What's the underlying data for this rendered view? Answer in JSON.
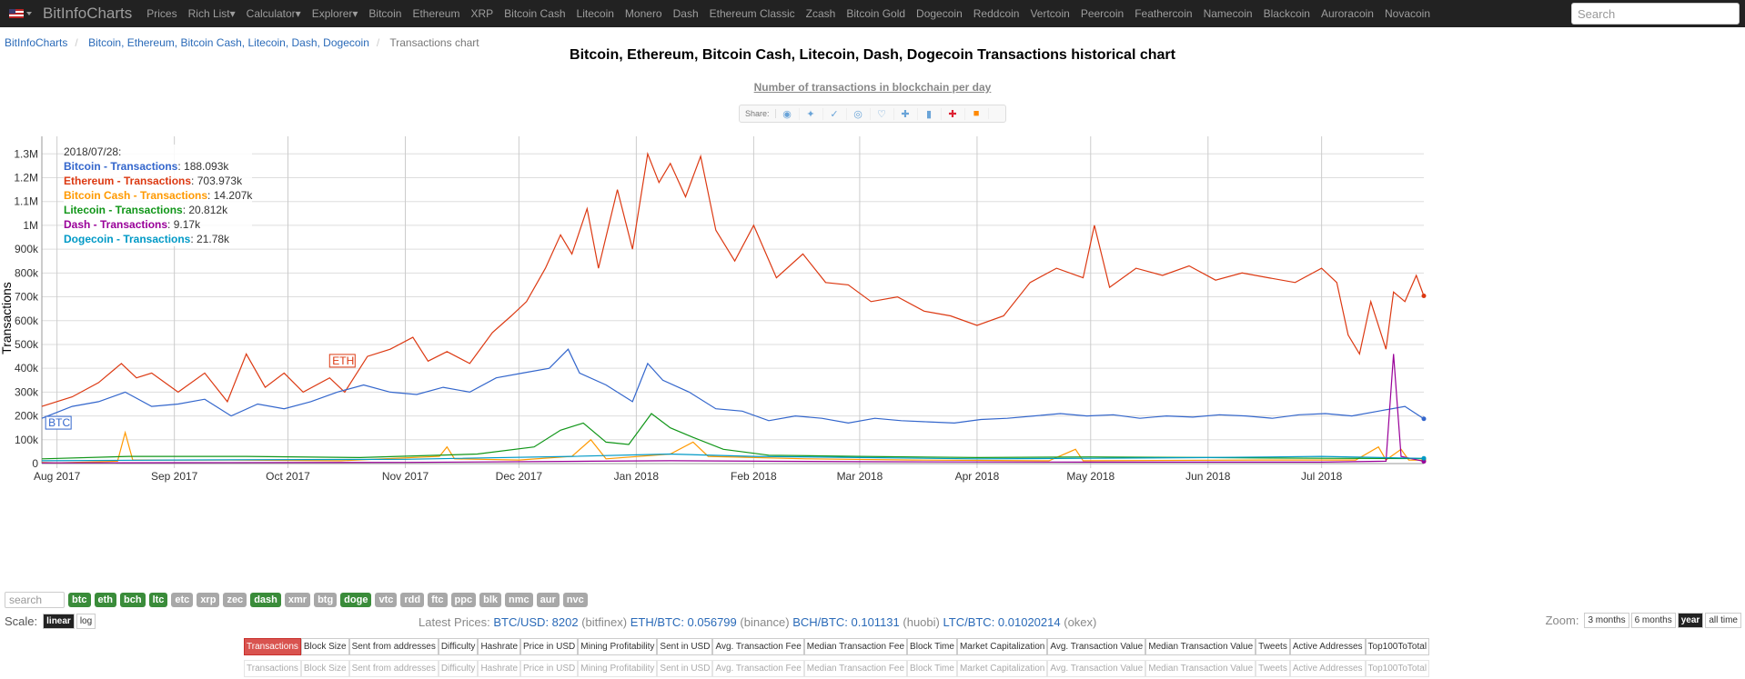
{
  "nav": {
    "brand": "BitInfoCharts",
    "links": [
      "Prices",
      "Rich List▾",
      "Calculator▾",
      "Explorer▾",
      "Bitcoin",
      "Ethereum",
      "XRP",
      "Bitcoin Cash",
      "Litecoin",
      "Monero",
      "Dash",
      "Ethereum Classic",
      "Zcash",
      "Bitcoin Gold",
      "Dogecoin",
      "Reddcoin",
      "Vertcoin",
      "Peercoin",
      "Feathercoin",
      "Namecoin",
      "Blackcoin",
      "Auroracoin",
      "Novacoin"
    ],
    "search_placeholder": "Search"
  },
  "breadcrumb": {
    "home": "BitInfoCharts",
    "coins": "Bitcoin, Ethereum, Bitcoin Cash, Litecoin, Dash, Dogecoin",
    "current": "Transactions chart"
  },
  "share": {
    "label": "Share:"
  },
  "tooltip": {
    "date": "2018/07/28:",
    "rows": [
      {
        "name": "Bitcoin - Transactions",
        "value": "188.093k",
        "color": "#3366cc"
      },
      {
        "name": "Ethereum - Transactions",
        "value": "703.973k",
        "color": "#dc3912"
      },
      {
        "name": "Bitcoin Cash - Transactions",
        "value": "14.207k",
        "color": "#ff9900"
      },
      {
        "name": "Litecoin - Transactions",
        "value": "20.812k",
        "color": "#109618"
      },
      {
        "name": "Dash - Transactions",
        "value": "9.17k",
        "color": "#990099"
      },
      {
        "name": "Dogecoin - Transactions",
        "value": "21.78k",
        "color": "#0099c6"
      }
    ]
  },
  "chart_data": {
    "type": "line",
    "title": "Bitcoin, Ethereum, Bitcoin Cash, Litecoin, Dash, Dogecoin Transactions historical chart",
    "subtitle": "Number of transactions in blockchain per day",
    "ylabel": "Transactions",
    "ylim": [
      0,
      1450000
    ],
    "yticks": [
      0,
      100000,
      200000,
      300000,
      400000,
      500000,
      600000,
      700000,
      800000,
      900000,
      1000000,
      1100000,
      1200000,
      1300000,
      1400000
    ],
    "yticklabels": [
      "0",
      "100k",
      "200k",
      "300k",
      "400k",
      "500k",
      "600k",
      "700k",
      "800k",
      "900k",
      "1M",
      "1.1M",
      "1.2M",
      "1.3M",
      "1.4M"
    ],
    "xlim": [
      "2017-07-28",
      "2018-07-28"
    ],
    "xticks": [
      "2017-08-01",
      "2017-09-01",
      "2017-10-01",
      "2017-11-01",
      "2017-12-01",
      "2018-01-01",
      "2018-02-01",
      "2018-03-01",
      "2018-04-01",
      "2018-05-01",
      "2018-06-01",
      "2018-07-01"
    ],
    "xticklabels": [
      "Aug 2017",
      "Sep 2017",
      "Oct 2017",
      "Nov 2017",
      "Dec 2017",
      "Jan 2018",
      "Feb 2018",
      "Mar 2018",
      "Apr 2018",
      "May 2018",
      "Jun 2018",
      "Jul 2018"
    ],
    "grid": true,
    "annotations": [
      {
        "text": "BTC",
        "x": "2017-07-29",
        "y": 160000,
        "color": "#3366cc"
      },
      {
        "text": "ETH",
        "x": "2017-10-12",
        "y": 420000,
        "color": "#dc3912"
      }
    ],
    "series": [
      {
        "name": "Ethereum - Transactions",
        "color": "#dc3912",
        "points": [
          [
            "2017-07-28",
            240000
          ],
          [
            "2017-08-05",
            280000
          ],
          [
            "2017-08-12",
            340000
          ],
          [
            "2017-08-18",
            420000
          ],
          [
            "2017-08-22",
            360000
          ],
          [
            "2017-08-26",
            380000
          ],
          [
            "2017-09-02",
            300000
          ],
          [
            "2017-09-09",
            380000
          ],
          [
            "2017-09-15",
            260000
          ],
          [
            "2017-09-20",
            460000
          ],
          [
            "2017-09-25",
            320000
          ],
          [
            "2017-09-30",
            380000
          ],
          [
            "2017-10-05",
            300000
          ],
          [
            "2017-10-12",
            360000
          ],
          [
            "2017-10-16",
            300000
          ],
          [
            "2017-10-22",
            450000
          ],
          [
            "2017-10-28",
            480000
          ],
          [
            "2017-11-03",
            530000
          ],
          [
            "2017-11-07",
            430000
          ],
          [
            "2017-11-12",
            470000
          ],
          [
            "2017-11-18",
            420000
          ],
          [
            "2017-11-24",
            550000
          ],
          [
            "2017-11-29",
            620000
          ],
          [
            "2017-12-03",
            680000
          ],
          [
            "2017-12-08",
            820000
          ],
          [
            "2017-12-12",
            960000
          ],
          [
            "2017-12-15",
            880000
          ],
          [
            "2017-12-19",
            1070000
          ],
          [
            "2017-12-22",
            820000
          ],
          [
            "2017-12-27",
            1150000
          ],
          [
            "2017-12-31",
            900000
          ],
          [
            "2018-01-04",
            1300000
          ],
          [
            "2018-01-07",
            1180000
          ],
          [
            "2018-01-10",
            1260000
          ],
          [
            "2018-01-14",
            1120000
          ],
          [
            "2018-01-18",
            1290000
          ],
          [
            "2018-01-22",
            980000
          ],
          [
            "2018-01-27",
            850000
          ],
          [
            "2018-02-01",
            1000000
          ],
          [
            "2018-02-07",
            780000
          ],
          [
            "2018-02-14",
            880000
          ],
          [
            "2018-02-20",
            760000
          ],
          [
            "2018-02-26",
            750000
          ],
          [
            "2018-03-04",
            680000
          ],
          [
            "2018-03-11",
            700000
          ],
          [
            "2018-03-18",
            640000
          ],
          [
            "2018-03-25",
            620000
          ],
          [
            "2018-04-01",
            580000
          ],
          [
            "2018-04-08",
            620000
          ],
          [
            "2018-04-15",
            760000
          ],
          [
            "2018-04-22",
            820000
          ],
          [
            "2018-04-29",
            780000
          ],
          [
            "2018-05-02",
            1000000
          ],
          [
            "2018-05-06",
            740000
          ],
          [
            "2018-05-13",
            820000
          ],
          [
            "2018-05-20",
            790000
          ],
          [
            "2018-05-27",
            830000
          ],
          [
            "2018-06-03",
            770000
          ],
          [
            "2018-06-10",
            800000
          ],
          [
            "2018-06-17",
            780000
          ],
          [
            "2018-06-24",
            760000
          ],
          [
            "2018-07-01",
            820000
          ],
          [
            "2018-07-05",
            760000
          ],
          [
            "2018-07-08",
            540000
          ],
          [
            "2018-07-11",
            460000
          ],
          [
            "2018-07-14",
            680000
          ],
          [
            "2018-07-18",
            480000
          ],
          [
            "2018-07-20",
            720000
          ],
          [
            "2018-07-23",
            680000
          ],
          [
            "2018-07-26",
            790000
          ],
          [
            "2018-07-28",
            703973
          ]
        ]
      },
      {
        "name": "Bitcoin - Transactions",
        "color": "#3366cc",
        "points": [
          [
            "2017-07-28",
            190000
          ],
          [
            "2017-08-05",
            240000
          ],
          [
            "2017-08-12",
            260000
          ],
          [
            "2017-08-19",
            300000
          ],
          [
            "2017-08-26",
            240000
          ],
          [
            "2017-09-02",
            250000
          ],
          [
            "2017-09-09",
            270000
          ],
          [
            "2017-09-16",
            200000
          ],
          [
            "2017-09-23",
            250000
          ],
          [
            "2017-09-30",
            230000
          ],
          [
            "2017-10-07",
            260000
          ],
          [
            "2017-10-14",
            300000
          ],
          [
            "2017-10-21",
            330000
          ],
          [
            "2017-10-28",
            300000
          ],
          [
            "2017-11-04",
            290000
          ],
          [
            "2017-11-11",
            320000
          ],
          [
            "2017-11-18",
            300000
          ],
          [
            "2017-11-25",
            360000
          ],
          [
            "2017-12-02",
            380000
          ],
          [
            "2017-12-09",
            400000
          ],
          [
            "2017-12-14",
            480000
          ],
          [
            "2017-12-17",
            380000
          ],
          [
            "2017-12-24",
            330000
          ],
          [
            "2017-12-31",
            260000
          ],
          [
            "2018-01-04",
            420000
          ],
          [
            "2018-01-08",
            350000
          ],
          [
            "2018-01-15",
            300000
          ],
          [
            "2018-01-22",
            230000
          ],
          [
            "2018-01-29",
            220000
          ],
          [
            "2018-02-05",
            180000
          ],
          [
            "2018-02-12",
            200000
          ],
          [
            "2018-02-19",
            190000
          ],
          [
            "2018-02-26",
            170000
          ],
          [
            "2018-03-05",
            190000
          ],
          [
            "2018-03-12",
            180000
          ],
          [
            "2018-03-19",
            175000
          ],
          [
            "2018-03-26",
            170000
          ],
          [
            "2018-04-02",
            185000
          ],
          [
            "2018-04-09",
            190000
          ],
          [
            "2018-04-16",
            200000
          ],
          [
            "2018-04-23",
            210000
          ],
          [
            "2018-04-30",
            200000
          ],
          [
            "2018-05-07",
            205000
          ],
          [
            "2018-05-14",
            190000
          ],
          [
            "2018-05-21",
            200000
          ],
          [
            "2018-05-28",
            195000
          ],
          [
            "2018-06-04",
            205000
          ],
          [
            "2018-06-11",
            200000
          ],
          [
            "2018-06-18",
            190000
          ],
          [
            "2018-06-25",
            205000
          ],
          [
            "2018-07-02",
            210000
          ],
          [
            "2018-07-09",
            200000
          ],
          [
            "2018-07-16",
            220000
          ],
          [
            "2018-07-23",
            240000
          ],
          [
            "2018-07-28",
            188093
          ]
        ]
      },
      {
        "name": "Bitcoin Cash - Transactions",
        "color": "#ff9900",
        "points": [
          [
            "2017-07-28",
            5000
          ],
          [
            "2017-08-01",
            3000
          ],
          [
            "2017-08-17",
            10000
          ],
          [
            "2017-08-19",
            130000
          ],
          [
            "2017-08-21",
            15000
          ],
          [
            "2017-09-15",
            15000
          ],
          [
            "2017-10-15",
            12000
          ],
          [
            "2017-11-10",
            30000
          ],
          [
            "2017-11-12",
            70000
          ],
          [
            "2017-11-14",
            20000
          ],
          [
            "2017-12-01",
            15000
          ],
          [
            "2017-12-15",
            30000
          ],
          [
            "2017-12-20",
            100000
          ],
          [
            "2017-12-24",
            20000
          ],
          [
            "2018-01-10",
            40000
          ],
          [
            "2018-01-16",
            90000
          ],
          [
            "2018-01-20",
            30000
          ],
          [
            "2018-02-15",
            20000
          ],
          [
            "2018-03-15",
            15000
          ],
          [
            "2018-04-20",
            12000
          ],
          [
            "2018-04-27",
            60000
          ],
          [
            "2018-04-29",
            12000
          ],
          [
            "2018-06-15",
            15000
          ],
          [
            "2018-07-10",
            15000
          ],
          [
            "2018-07-16",
            70000
          ],
          [
            "2018-07-18",
            15000
          ],
          [
            "2018-07-22",
            60000
          ],
          [
            "2018-07-24",
            15000
          ],
          [
            "2018-07-28",
            14207
          ]
        ]
      },
      {
        "name": "Litecoin - Transactions",
        "color": "#109618",
        "points": [
          [
            "2017-07-28",
            20000
          ],
          [
            "2017-08-20",
            30000
          ],
          [
            "2017-09-20",
            30000
          ],
          [
            "2017-10-20",
            25000
          ],
          [
            "2017-11-20",
            40000
          ],
          [
            "2017-12-05",
            70000
          ],
          [
            "2017-12-12",
            140000
          ],
          [
            "2017-12-18",
            170000
          ],
          [
            "2017-12-24",
            90000
          ],
          [
            "2017-12-30",
            80000
          ],
          [
            "2018-01-05",
            210000
          ],
          [
            "2018-01-10",
            150000
          ],
          [
            "2018-01-16",
            110000
          ],
          [
            "2018-01-24",
            60000
          ],
          [
            "2018-02-05",
            35000
          ],
          [
            "2018-03-01",
            30000
          ],
          [
            "2018-04-01",
            25000
          ],
          [
            "2018-05-01",
            28000
          ],
          [
            "2018-06-01",
            25000
          ],
          [
            "2018-07-01",
            22000
          ],
          [
            "2018-07-28",
            20812
          ]
        ]
      },
      {
        "name": "Dash - Transactions",
        "color": "#990099",
        "points": [
          [
            "2017-07-28",
            3000
          ],
          [
            "2017-09-01",
            4000
          ],
          [
            "2017-11-01",
            5000
          ],
          [
            "2017-12-20",
            10000
          ],
          [
            "2018-01-10",
            12000
          ],
          [
            "2018-03-01",
            8000
          ],
          [
            "2018-05-01",
            6000
          ],
          [
            "2018-07-01",
            6000
          ],
          [
            "2018-07-18",
            10000
          ],
          [
            "2018-07-20",
            460000
          ],
          [
            "2018-07-22",
            30000
          ],
          [
            "2018-07-28",
            9170
          ]
        ]
      },
      {
        "name": "Dogecoin - Transactions",
        "color": "#0099c6",
        "points": [
          [
            "2017-07-28",
            12000
          ],
          [
            "2017-09-01",
            15000
          ],
          [
            "2017-11-01",
            18000
          ],
          [
            "2017-12-15",
            30000
          ],
          [
            "2018-01-10",
            40000
          ],
          [
            "2018-02-01",
            30000
          ],
          [
            "2018-03-01",
            25000
          ],
          [
            "2018-04-01",
            20000
          ],
          [
            "2018-05-01",
            22000
          ],
          [
            "2018-06-01",
            25000
          ],
          [
            "2018-07-01",
            30000
          ],
          [
            "2018-07-28",
            21780
          ]
        ]
      }
    ]
  },
  "coins": {
    "search_placeholder": "search",
    "items": [
      {
        "label": "btc",
        "on": true
      },
      {
        "label": "eth",
        "on": true
      },
      {
        "label": "bch",
        "on": true
      },
      {
        "label": "ltc",
        "on": true
      },
      {
        "label": "etc",
        "on": false
      },
      {
        "label": "xrp",
        "on": false
      },
      {
        "label": "zec",
        "on": false
      },
      {
        "label": "dash",
        "on": true
      },
      {
        "label": "xmr",
        "on": false
      },
      {
        "label": "btg",
        "on": false
      },
      {
        "label": "doge",
        "on": true
      },
      {
        "label": "vtc",
        "on": false
      },
      {
        "label": "rdd",
        "on": false
      },
      {
        "label": "ftc",
        "on": false
      },
      {
        "label": "ppc",
        "on": false
      },
      {
        "label": "blk",
        "on": false
      },
      {
        "label": "nmc",
        "on": false
      },
      {
        "label": "aur",
        "on": false
      },
      {
        "label": "nvc",
        "on": false
      }
    ]
  },
  "scale": {
    "label": "Scale:",
    "linear": "linear",
    "log": "log"
  },
  "prices": {
    "label": "Latest Prices:",
    "items": [
      {
        "pair": "BTC/USD: 8202",
        "src": "(bitfinex)"
      },
      {
        "pair": "ETH/BTC: 0.056799",
        "src": "(binance)"
      },
      {
        "pair": "BCH/BTC: 0.101131",
        "src": "(huobi)"
      },
      {
        "pair": "LTC/BTC: 0.01020214",
        "src": "(okex)"
      }
    ]
  },
  "zoom": {
    "label": "Zoom:",
    "options": [
      "3 months",
      "6 months",
      "year",
      "all time"
    ],
    "selected": "year"
  },
  "metrics": [
    "Transactions",
    "Block Size",
    "Sent from addresses",
    "Difficulty",
    "Hashrate",
    "Price in USD",
    "Mining Profitability",
    "Sent in USD",
    "Avg. Transaction Fee",
    "Median Transaction Fee",
    "Block Time",
    "Market Capitalization",
    "Avg. Transaction Value",
    "Median Transaction Value",
    "Tweets",
    "Active Addresses",
    "Top100ToTotal"
  ]
}
